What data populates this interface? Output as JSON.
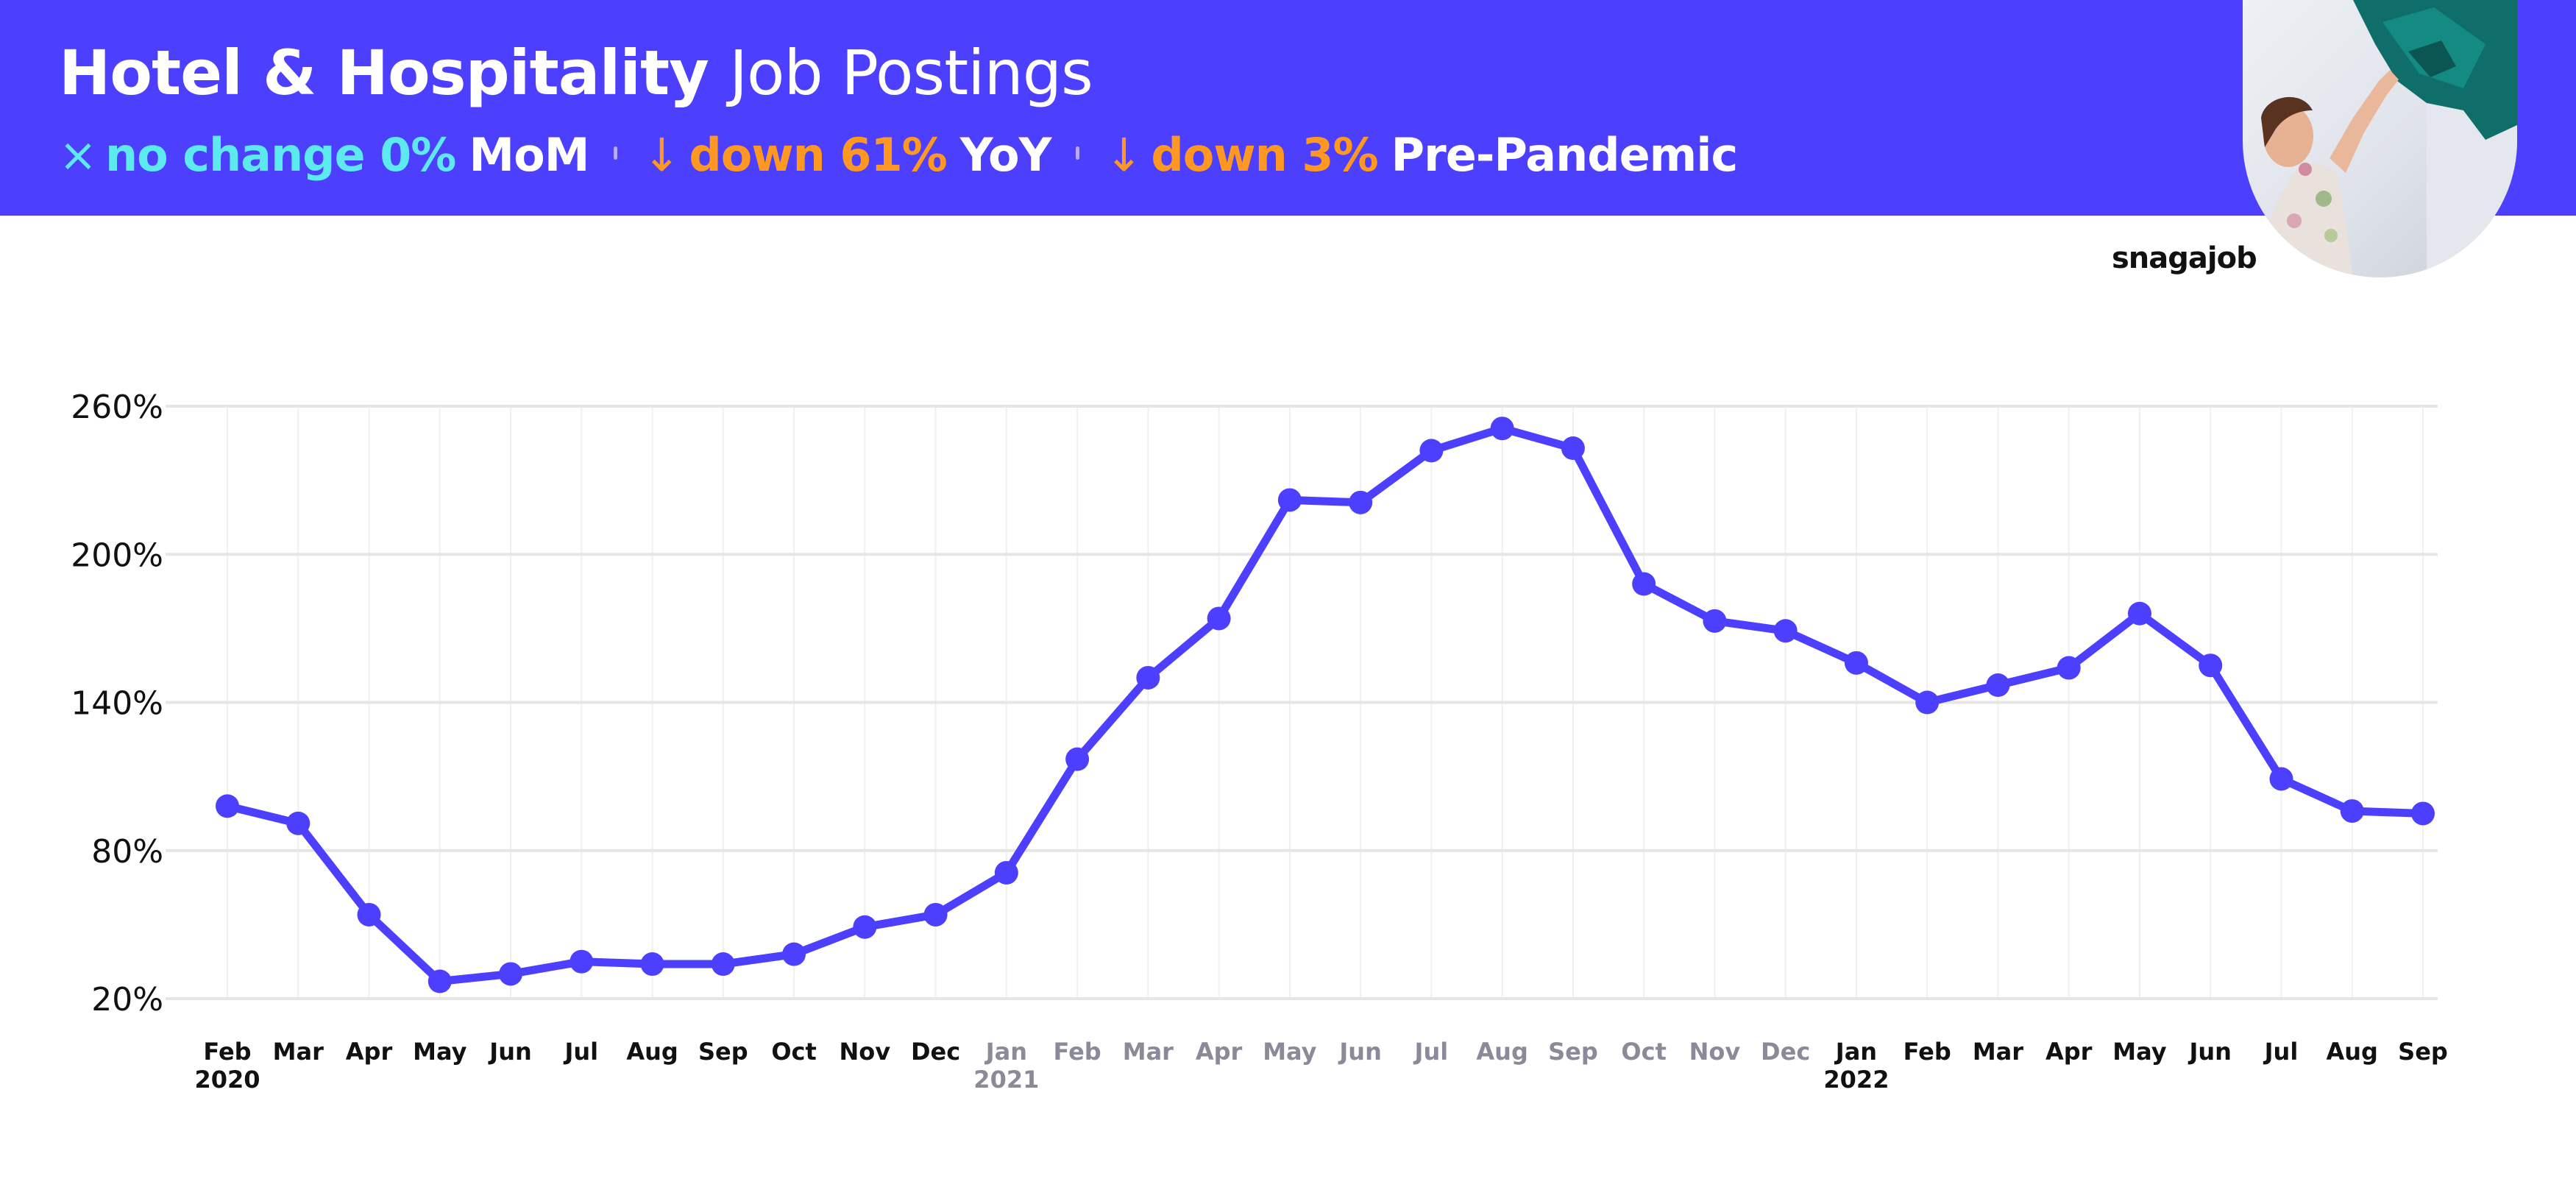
{
  "header": {
    "title_bold": "Hotel & Hospitality",
    "title_light": "Job Postings",
    "stats": [
      {
        "icon": "×",
        "label": "no change 0%",
        "suffix": "MoM",
        "color": "#5de9f0"
      },
      {
        "icon": "↓",
        "label": "down 61%",
        "suffix": "YoY",
        "color": "#ff9822"
      },
      {
        "icon": "↓",
        "label": "down 3%",
        "suffix": "Pre-Pandemic",
        "color": "#ff9822"
      }
    ]
  },
  "brand": "snagajob",
  "colors": {
    "banner": "#4c3ffe",
    "line": "#4c3ffe",
    "grid": "#e6e6e6",
    "muted_tick": "#8a8a99"
  },
  "icons": {
    "photo": "housekeeper-photo",
    "no-change": "x-icon",
    "down": "arrow-down-icon"
  },
  "chart_data": {
    "type": "line",
    "x": [
      "Feb",
      "Mar",
      "Apr",
      "May",
      "Jun",
      "Jul",
      "Aug",
      "Sep",
      "Oct",
      "Nov",
      "Dec",
      "Jan",
      "Feb",
      "Mar",
      "Apr",
      "May",
      "Jun",
      "Jul",
      "Aug",
      "Sep",
      "Oct",
      "Nov",
      "Dec",
      "Jan",
      "Feb",
      "Mar",
      "Apr",
      "May",
      "Jun",
      "Jul",
      "Aug",
      "Sep"
    ],
    "year_labels": [
      {
        "index": 0,
        "text": "2020"
      },
      {
        "index": 11,
        "text": "2021"
      },
      {
        "index": 23,
        "text": "2022"
      }
    ],
    "muted_x_indices": [
      11,
      12,
      13,
      14,
      15,
      16,
      17,
      18,
      19,
      20,
      21,
      22
    ],
    "series": [
      {
        "values": [
          98,
          91,
          54,
          27,
          30,
          35,
          34,
          34,
          38,
          49,
          54,
          71,
          117,
          150,
          174,
          222,
          221,
          242,
          251,
          243,
          188,
          173,
          169,
          156,
          140,
          147,
          154,
          176,
          155,
          109,
          96,
          95
        ]
      }
    ],
    "yticks": [
      "20%",
      "80%",
      "140%",
      "200%",
      "260%"
    ],
    "ytick_values": [
      20,
      80,
      140,
      200,
      260
    ],
    "ylim": [
      20,
      260
    ],
    "grid": true,
    "legend": "none"
  }
}
